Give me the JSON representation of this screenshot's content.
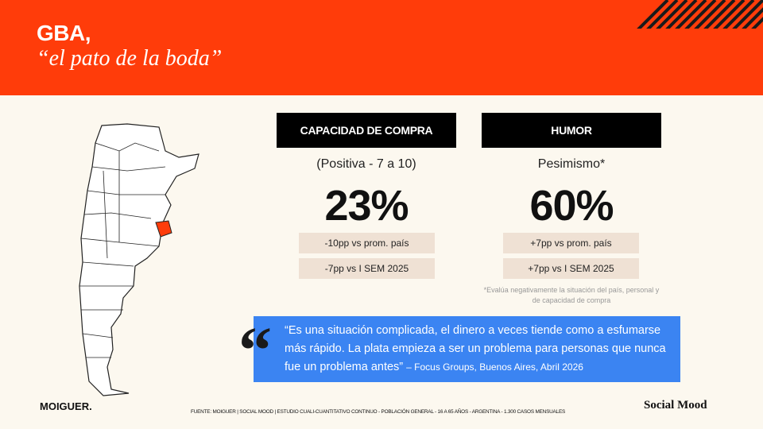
{
  "header": {
    "title": "GBA,",
    "subtitle": "“el pato de la boda”"
  },
  "panels": [
    {
      "header": "CAPACIDAD DE COMPRA",
      "subtitle": "(Positiva - 7 a 10)",
      "value": "23%",
      "notes": [
        "-10pp vs prom. país",
        "-7pp vs I SEM 2025"
      ]
    },
    {
      "header": "HUMOR",
      "subtitle": "Pesimismo*",
      "value": "60%",
      "notes": [
        "+7pp vs prom. país",
        "+7pp vs I SEM 2025"
      ],
      "footnote": "*Evalúa negativamente la situación del país, personal y de capacidad de compra"
    }
  ],
  "quote": {
    "mark": "“",
    "text": "“Es una situación complicada, el dinero a veces tiende como a esfumarse más rápido. La plata empieza a ser un problema para personas que nunca fue un problema antes”",
    "source": "– Focus Groups, Buenos Aires, Abril 2026"
  },
  "footer": {
    "left": "MOIGUER.",
    "source": "FUENTE: MOIGUER | SOCIAL MOOD | ESTUDIO CUALI-CUANTITATIVO CONTINUO - POBLACIÓN GENERAL - 16 A 65 AÑOS - ARGENTINA - 1.300 CASOS MENSUALES",
    "right": "Social Mood"
  }
}
